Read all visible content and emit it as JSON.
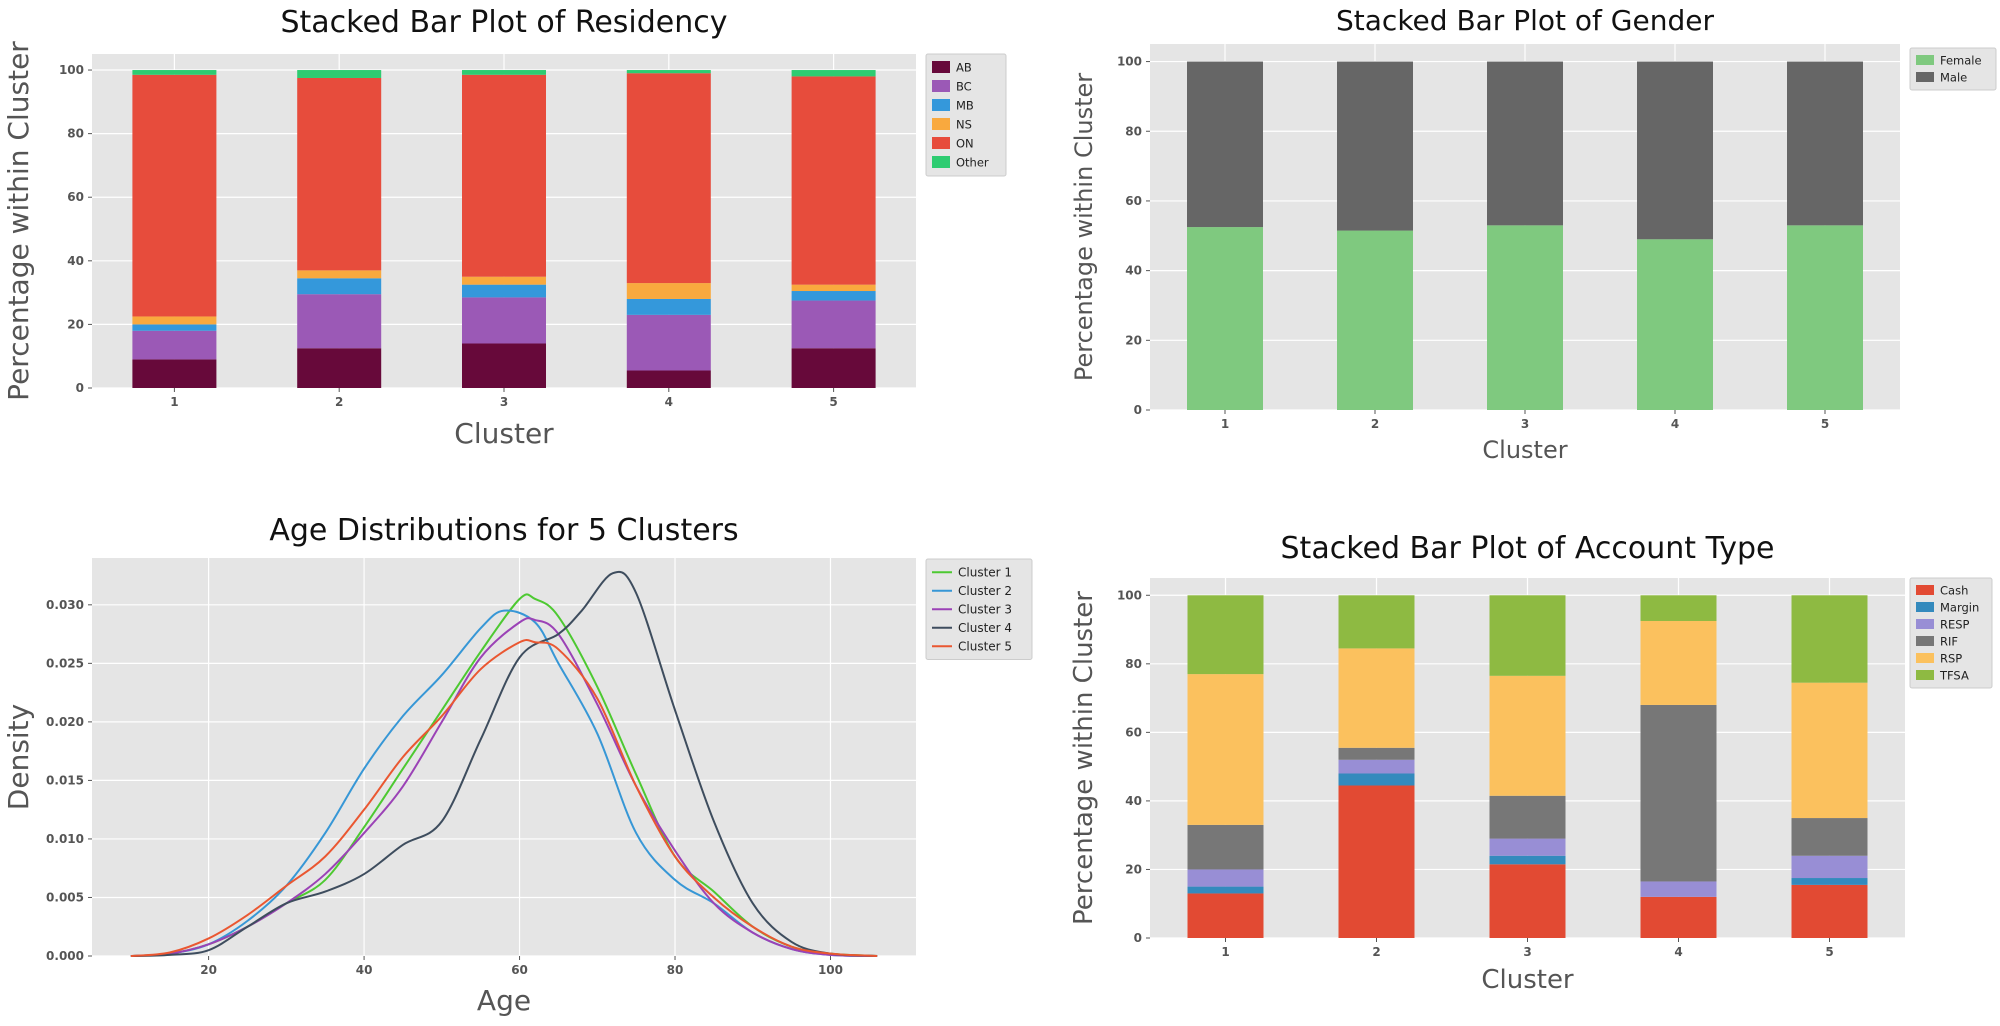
{
  "chart_data": [
    {
      "type": "bar",
      "stacked": true,
      "title": "Stacked Bar Plot of Residency",
      "xlabel": "Cluster",
      "ylabel": "Percentage within Cluster",
      "categories": [
        "1",
        "2",
        "3",
        "4",
        "5"
      ],
      "ylim": [
        0,
        100
      ],
      "yticks": [
        0,
        20,
        40,
        60,
        80,
        100
      ],
      "legend_position": "right",
      "series": [
        {
          "name": "AB",
          "color": "#67093A",
          "values": [
            9,
            12.5,
            14,
            5.5,
            12.5
          ]
        },
        {
          "name": "BC",
          "color": "#9B59B6",
          "values": [
            9,
            17,
            14.5,
            17.5,
            15
          ]
        },
        {
          "name": "MB",
          "color": "#3498DB",
          "values": [
            2,
            5,
            4,
            5,
            3
          ]
        },
        {
          "name": "NS",
          "color": "#F9A93E",
          "values": [
            2.5,
            2.5,
            2.5,
            5,
            2
          ]
        },
        {
          "name": "ON",
          "color": "#E74C3C",
          "values": [
            76,
            60.5,
            63.5,
            66,
            65.5
          ]
        },
        {
          "name": "Other",
          "color": "#2ECC71",
          "values": [
            1.5,
            2.5,
            1.5,
            1,
            2
          ]
        }
      ]
    },
    {
      "type": "bar",
      "stacked": true,
      "title": "Stacked Bar Plot of Gender",
      "xlabel": "Cluster",
      "ylabel": "Percentage within Cluster",
      "categories": [
        "1",
        "2",
        "3",
        "4",
        "5"
      ],
      "ylim": [
        0,
        100
      ],
      "yticks": [
        0,
        20,
        40,
        60,
        80,
        100
      ],
      "legend_position": "right",
      "series": [
        {
          "name": "Female",
          "color": "#7FC97F",
          "values": [
            52.5,
            51.5,
            53,
            49,
            53
          ]
        },
        {
          "name": "Male",
          "color": "#666666",
          "values": [
            47.5,
            48.5,
            47,
            51,
            47
          ]
        }
      ]
    },
    {
      "type": "line",
      "title": "Age Distributions for 5 Clusters",
      "xlabel": "Age",
      "ylabel": "Density",
      "xlim": [
        5,
        111
      ],
      "ylim": [
        0,
        0.034
      ],
      "xticks": [
        20,
        40,
        60,
        80,
        100
      ],
      "yticks": [
        "0.000",
        "0.005",
        "0.010",
        "0.015",
        "0.020",
        "0.025",
        "0.030"
      ],
      "legend_position": "right",
      "series": [
        {
          "name": "Cluster 1",
          "color": "#4DC931",
          "x": [
            10,
            15,
            20,
            25,
            30,
            35,
            40,
            45,
            50,
            55,
            60,
            62,
            65,
            70,
            75,
            80,
            85,
            90,
            95,
            100,
            106
          ],
          "y": [
            0,
            0.0002,
            0.001,
            0.0025,
            0.0045,
            0.0065,
            0.011,
            0.016,
            0.021,
            0.026,
            0.0305,
            0.0305,
            0.029,
            0.023,
            0.0155,
            0.0085,
            0.0055,
            0.0025,
            0.0008,
            0.0002,
            0
          ]
        },
        {
          "name": "Cluster 2",
          "color": "#3797D6",
          "x": [
            10,
            15,
            20,
            25,
            30,
            35,
            40,
            45,
            50,
            55,
            58,
            62,
            65,
            70,
            75,
            80,
            85,
            90,
            95,
            100,
            106
          ],
          "y": [
            0,
            0.0002,
            0.001,
            0.003,
            0.006,
            0.0105,
            0.016,
            0.0205,
            0.024,
            0.028,
            0.0295,
            0.0285,
            0.025,
            0.019,
            0.0105,
            0.0065,
            0.0045,
            0.002,
            0.0006,
            0.0001,
            0
          ]
        },
        {
          "name": "Cluster 3",
          "color": "#9B42B6",
          "x": [
            10,
            15,
            20,
            25,
            30,
            35,
            40,
            45,
            50,
            55,
            60,
            62,
            65,
            70,
            75,
            80,
            85,
            90,
            95,
            100,
            106
          ],
          "y": [
            0,
            0.0002,
            0.001,
            0.0025,
            0.0045,
            0.007,
            0.0105,
            0.0145,
            0.02,
            0.0255,
            0.0285,
            0.0287,
            0.0275,
            0.0215,
            0.0145,
            0.009,
            0.0045,
            0.002,
            0.0006,
            0.0001,
            0
          ]
        },
        {
          "name": "Cluster 4",
          "color": "#3E4D5E",
          "x": [
            10,
            15,
            20,
            25,
            30,
            35,
            40,
            45,
            50,
            55,
            60,
            65,
            68,
            72,
            75,
            80,
            85,
            90,
            95,
            100,
            106
          ],
          "y": [
            0,
            0.0001,
            0.0005,
            0.0025,
            0.0045,
            0.0055,
            0.007,
            0.0095,
            0.0115,
            0.0185,
            0.0255,
            0.0275,
            0.0295,
            0.0327,
            0.031,
            0.021,
            0.0115,
            0.0045,
            0.0012,
            0.0002,
            0
          ]
        },
        {
          "name": "Cluster 5",
          "color": "#EA5731",
          "x": [
            10,
            15,
            20,
            25,
            30,
            35,
            40,
            45,
            50,
            55,
            60,
            62,
            65,
            70,
            75,
            80,
            85,
            90,
            95,
            100,
            106
          ],
          "y": [
            0,
            0.0003,
            0.0015,
            0.0035,
            0.006,
            0.0085,
            0.0125,
            0.017,
            0.0205,
            0.0245,
            0.0268,
            0.0268,
            0.0262,
            0.022,
            0.0145,
            0.0085,
            0.005,
            0.0025,
            0.0008,
            0.0002,
            0
          ]
        }
      ]
    },
    {
      "type": "bar",
      "stacked": true,
      "title": "Stacked Bar Plot of Account Type",
      "xlabel": "Cluster",
      "ylabel": "Percentage within Cluster",
      "categories": [
        "1",
        "2",
        "3",
        "4",
        "5"
      ],
      "ylim": [
        0,
        100
      ],
      "yticks": [
        0,
        20,
        40,
        60,
        80,
        100
      ],
      "legend_position": "right",
      "series": [
        {
          "name": "Cash",
          "color": "#E24A33",
          "values": [
            13,
            44.5,
            21.5,
            12,
            15.5
          ]
        },
        {
          "name": "Margin",
          "color": "#348ABD",
          "values": [
            2,
            3.5,
            2.5,
            0,
            2
          ]
        },
        {
          "name": "RESP",
          "color": "#988ED5",
          "values": [
            5,
            4,
            5,
            4.5,
            6.5
          ]
        },
        {
          "name": "RIF",
          "color": "#777777",
          "values": [
            13,
            3.5,
            12.5,
            51.5,
            11
          ]
        },
        {
          "name": "RSP",
          "color": "#FBC15E",
          "values": [
            44,
            29,
            35,
            24.5,
            39.5
          ]
        },
        {
          "name": "TFSA",
          "color": "#8EBA42",
          "values": [
            23,
            15.5,
            23.5,
            7.5,
            25.5
          ]
        }
      ]
    }
  ]
}
